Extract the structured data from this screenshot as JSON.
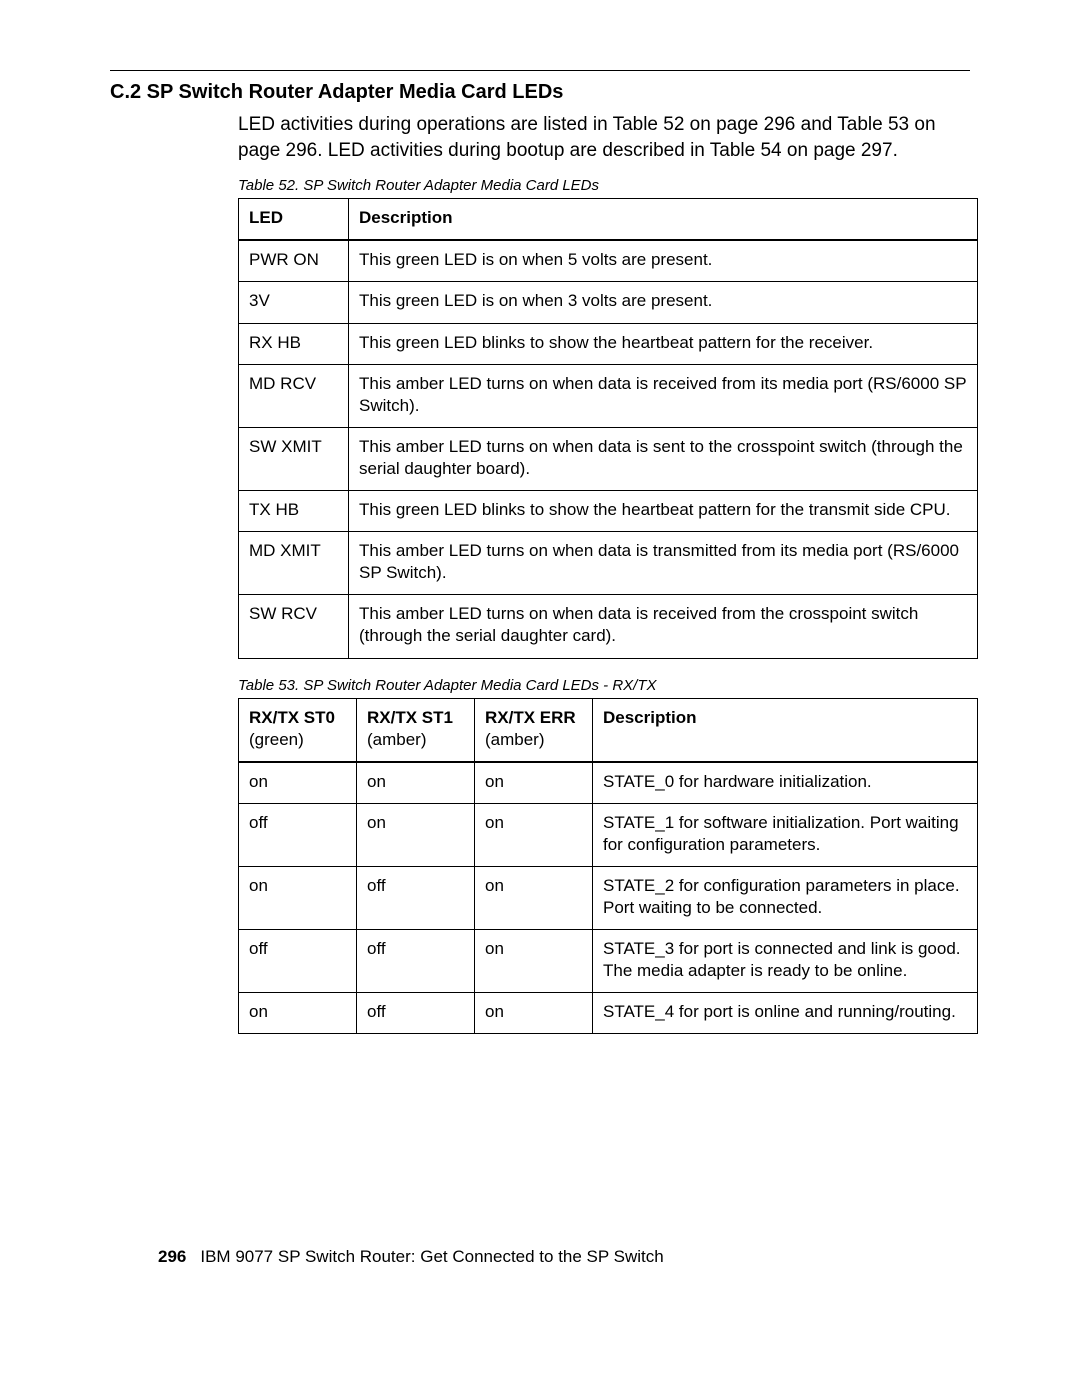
{
  "heading": "C.2  SP Switch Router Adapter Media Card LEDs",
  "intro": "LED activities during operations are listed in Table 52 on page 296 and Table 53 on page 296. LED activities during bootup are described in Table 54 on page 297.",
  "table52": {
    "caption": "Table 52.  SP Switch Router Adapter Media Card LEDs",
    "col_widths": [
      "110px",
      "auto"
    ],
    "headers": [
      "LED",
      "Description"
    ],
    "rows": [
      [
        "PWR ON",
        "This green LED is on when 5 volts are present."
      ],
      [
        "3V",
        "This green LED is on when 3 volts are present."
      ],
      [
        "RX HB",
        "This green LED blinks to show the heartbeat pattern for the receiver."
      ],
      [
        "MD RCV",
        "This amber LED turns on when data is received from its media port (RS/6000 SP Switch)."
      ],
      [
        "SW XMIT",
        "This amber LED turns on when data is sent to the crosspoint switch (through the serial daughter board)."
      ],
      [
        "TX HB",
        "This green LED blinks to show the heartbeat pattern for the transmit side CPU."
      ],
      [
        "MD XMIT",
        "This amber LED turns on when data is transmitted from its media port (RS/6000 SP Switch)."
      ],
      [
        "SW RCV",
        "This amber LED turns on when data is received from the crosspoint switch (through the serial daughter card)."
      ]
    ]
  },
  "table53": {
    "caption": "Table 53.  SP Switch Router Adapter Media Card LEDs - RX/TX",
    "col_widths": [
      "118px",
      "118px",
      "118px",
      "auto"
    ],
    "headers": [
      {
        "bold": "RX/TX ST0",
        "sub": "(green)"
      },
      {
        "bold": "RX/TX ST1",
        "sub": "(amber)"
      },
      {
        "bold": "RX/TX ERR",
        "sub": "(amber)"
      },
      {
        "bold": "Description",
        "sub": ""
      }
    ],
    "rows": [
      [
        "on",
        "on",
        "on",
        "STATE_0 for hardware initialization."
      ],
      [
        "off",
        "on",
        "on",
        "STATE_1 for software initialization. Port waiting for configuration parameters."
      ],
      [
        "on",
        "off",
        "on",
        "STATE_2 for configuration parameters in place. Port waiting to be connected."
      ],
      [
        "off",
        "off",
        "on",
        "STATE_3 for port is connected and link is good. The media adapter is ready to be online."
      ],
      [
        "on",
        "off",
        "on",
        "STATE_4 for port is online and running/routing."
      ]
    ]
  },
  "footer": {
    "page_number": "296",
    "text": "IBM 9077 SP Switch Router: Get Connected to the SP Switch"
  }
}
